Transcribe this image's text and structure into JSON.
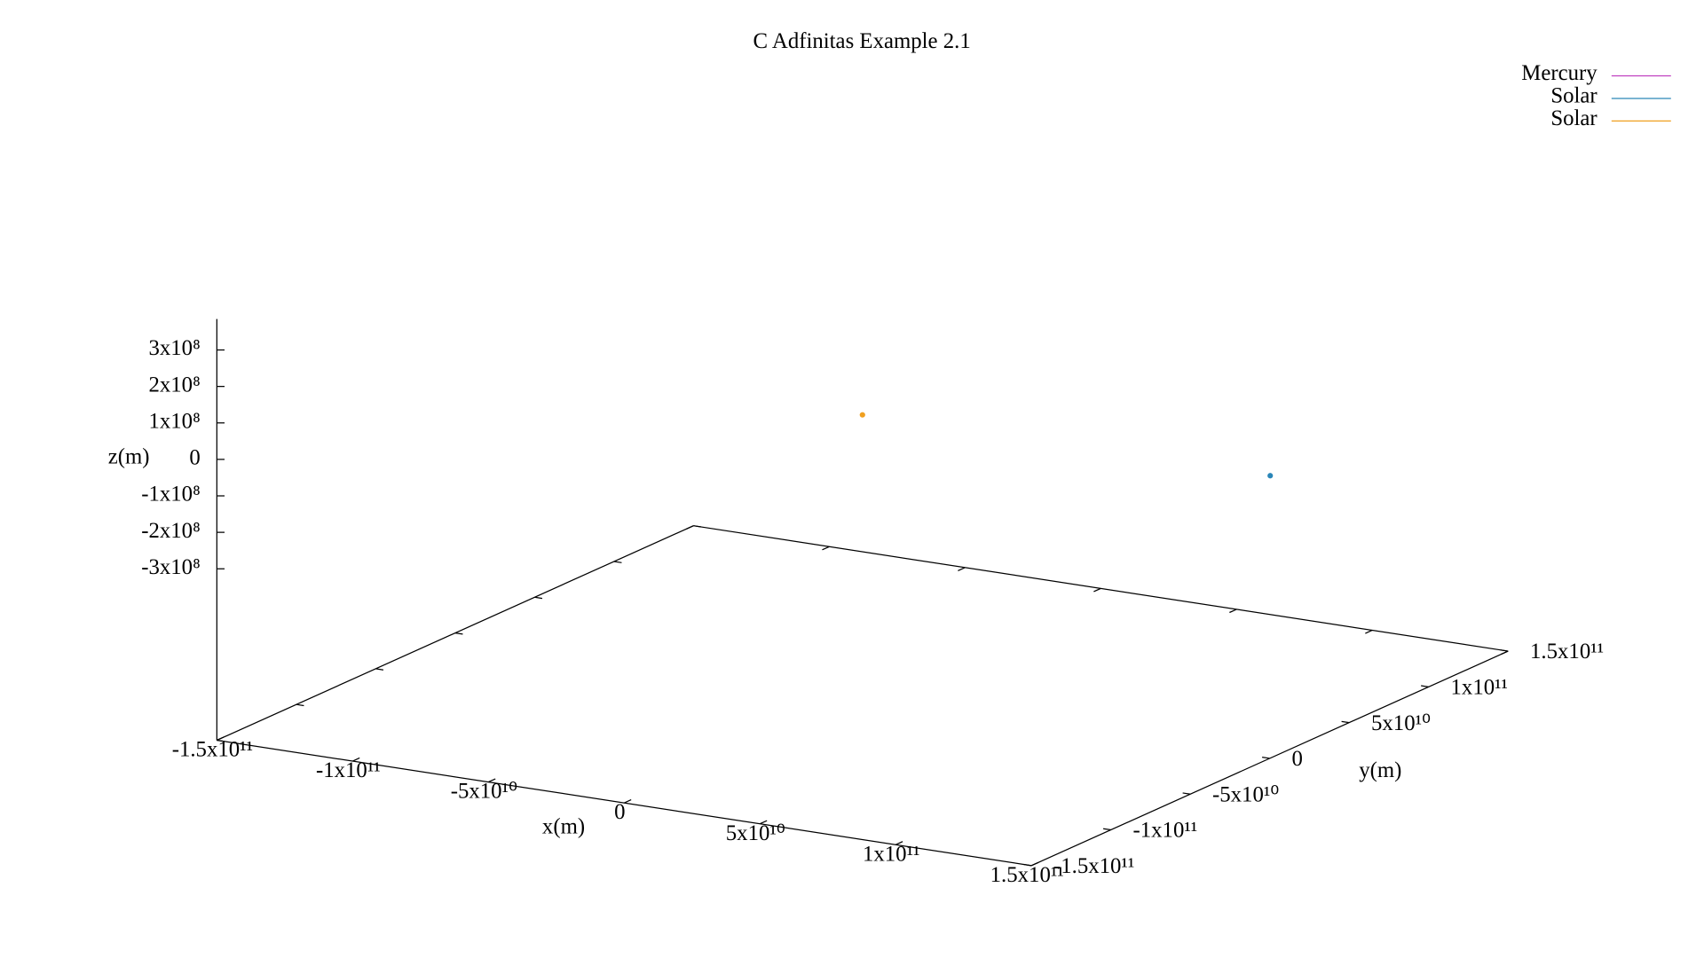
{
  "chart_data": {
    "type": "scatter3d",
    "title": "C Adfinitas Example 2.1",
    "xlabel": "x(m)",
    "ylabel": "y(m)",
    "zlabel": "z(m)",
    "xlim": [
      -150000000000,
      150000000000
    ],
    "ylim": [
      -150000000000,
      150000000000
    ],
    "zlim": [
      -385000000,
      385000000
    ],
    "xticks": [
      {
        "value": -150000000000,
        "label": "-1.5x10¹¹"
      },
      {
        "value": -100000000000,
        "label": "-1x10¹¹"
      },
      {
        "value": -50000000000,
        "label": "-5x10¹⁰"
      },
      0,
      {
        "value": 50000000000,
        "label": "5x10¹⁰"
      },
      {
        "value": 100000000000,
        "label": "1x10¹¹"
      },
      {
        "value": 150000000000,
        "label": "1.5x10¹¹"
      }
    ],
    "yticks": [
      {
        "value": -150000000000,
        "label": "-1.5x10¹¹"
      },
      {
        "value": -100000000000,
        "label": "-1x10¹¹"
      },
      {
        "value": -50000000000,
        "label": "-5x10¹⁰"
      },
      0,
      {
        "value": 50000000000,
        "label": "5x10¹⁰"
      },
      {
        "value": 100000000000,
        "label": "1x10¹¹"
      },
      {
        "value": 150000000000,
        "label": "1.5x10¹¹"
      }
    ],
    "zticks": [
      {
        "value": -300000000,
        "label": "-3x10⁸"
      },
      {
        "value": -200000000,
        "label": "-2x10⁸"
      },
      {
        "value": -100000000,
        "label": "-1x10⁸"
      },
      0,
      {
        "value": 100000000,
        "label": "1x10⁸"
      },
      {
        "value": 200000000,
        "label": "2x10⁸"
      },
      {
        "value": 300000000,
        "label": "3x10⁸"
      }
    ],
    "legend": "top-right",
    "series": [
      {
        "name": "Mercury",
        "color": "#c040c0",
        "x": [],
        "y": [],
        "z": []
      },
      {
        "name": "Solar",
        "color": "#2a86b8",
        "x": [
          149000000000
        ],
        "y": [
          2000000000
        ],
        "z": [
          0
        ]
      },
      {
        "name": "Solar",
        "color": "#f0a020",
        "x": [
          0
        ],
        "y": [
          0
        ],
        "z": [
          0
        ]
      }
    ]
  }
}
